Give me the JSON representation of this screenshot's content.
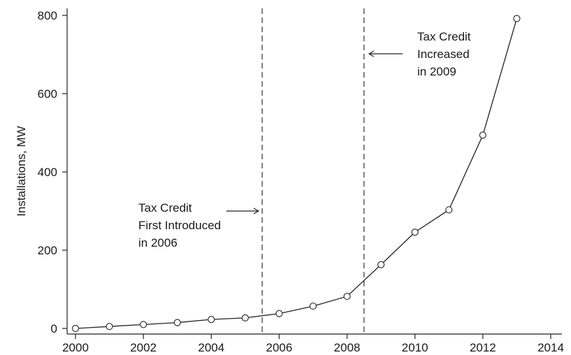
{
  "chart_data": {
    "type": "line",
    "title": "",
    "xlabel": "",
    "ylabel": "Installations, MW",
    "xlim": [
      2000,
      2014
    ],
    "ylim": [
      0,
      800
    ],
    "grid": false,
    "x_ticks": [
      "2000",
      "2002",
      "2004",
      "2006",
      "2008",
      "2010",
      "2012",
      "2014"
    ],
    "y_ticks": [
      "0",
      "200",
      "400",
      "600",
      "800"
    ],
    "series": [
      {
        "x": [
          2000,
          2001,
          2002,
          2003,
          2004,
          2005,
          2006,
          2007,
          2008,
          2009,
          2010,
          2011,
          2012,
          2013
        ],
        "values": [
          0,
          5,
          10,
          15,
          23,
          27,
          38,
          57,
          82,
          163,
          246,
          303,
          494,
          792
        ]
      }
    ],
    "reference_lines": [
      {
        "x": 2005.5,
        "style": "dashed"
      },
      {
        "x": 2008.5,
        "style": "dashed"
      }
    ],
    "annotations": [
      {
        "lines": [
          "Tax Credit",
          "First Introduced",
          "in 2006"
        ],
        "points_to": 2005.5,
        "arrow": "right"
      },
      {
        "lines": [
          "Tax Credit",
          "Increased",
          "in 2009"
        ],
        "points_to": 2008.5,
        "arrow": "left"
      }
    ]
  }
}
